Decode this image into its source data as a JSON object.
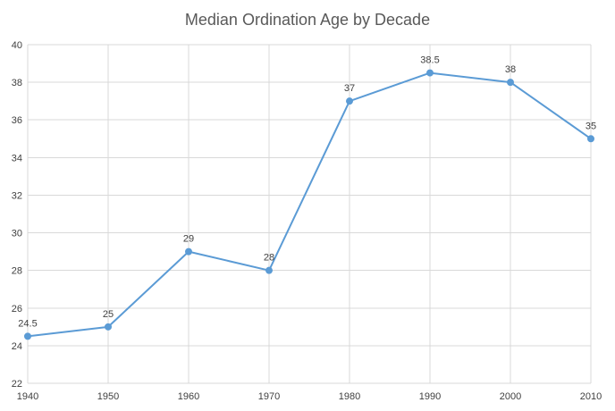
{
  "chart_data": {
    "type": "line",
    "title": "Median Ordination Age by Decade",
    "xlabel": "",
    "ylabel": "",
    "x": [
      1940,
      1950,
      1960,
      1970,
      1980,
      1990,
      2000,
      2010
    ],
    "x_tick_labels": [
      "1940",
      "1950",
      "1960",
      "1970",
      "1980",
      "1990",
      "2000",
      "2010"
    ],
    "y_tick_labels": [
      "22",
      "24",
      "26",
      "28",
      "30",
      "32",
      "34",
      "36",
      "38",
      "40"
    ],
    "ylim": [
      22,
      40
    ],
    "yticks": [
      22,
      24,
      26,
      28,
      30,
      32,
      34,
      36,
      38,
      40
    ],
    "grid": true,
    "legend": "none",
    "series": [
      {
        "values": [
          24.5,
          25,
          29,
          28,
          37,
          38.5,
          38,
          35
        ],
        "data_labels": [
          "24.5",
          "25",
          "29",
          "28",
          "37",
          "38.5",
          "38",
          "35"
        ],
        "color": "#5b9bd5"
      }
    ],
    "gridline_color": "#d9d9d9"
  }
}
